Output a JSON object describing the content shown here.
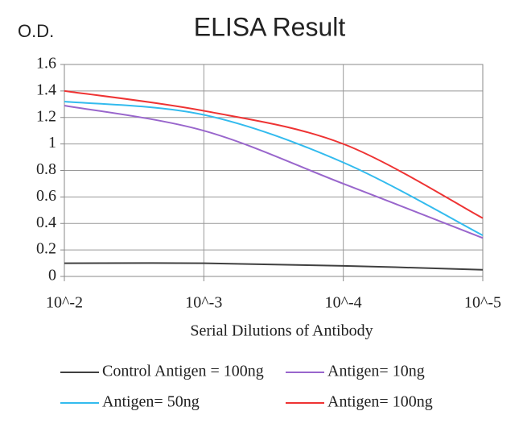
{
  "chart_data": {
    "type": "line",
    "title": "ELISA Result",
    "y_label": "O.D.",
    "x_label": "Serial Dilutions  of Antibody",
    "categories": [
      "10^-2",
      "10^-3",
      "10^-4",
      "10^-5"
    ],
    "series": [
      {
        "name": "Control Antigen = 100ng",
        "color": "#404040",
        "values": [
          0.1,
          0.1,
          0.08,
          0.05
        ]
      },
      {
        "name": "Antigen= 10ng",
        "color": "#9966cc",
        "values": [
          1.29,
          1.1,
          0.7,
          0.29
        ]
      },
      {
        "name": "Antigen= 50ng",
        "color": "#33bbee",
        "values": [
          1.32,
          1.22,
          0.86,
          0.31
        ]
      },
      {
        "name": "Antigen= 100ng",
        "color": "#ee3333",
        "values": [
          1.4,
          1.25,
          1.0,
          0.44
        ]
      }
    ],
    "ylim": [
      0,
      1.6
    ],
    "yticks": [
      0,
      0.2,
      0.4,
      0.6,
      0.8,
      1,
      1.2,
      1.4,
      1.6
    ],
    "grid": true
  }
}
